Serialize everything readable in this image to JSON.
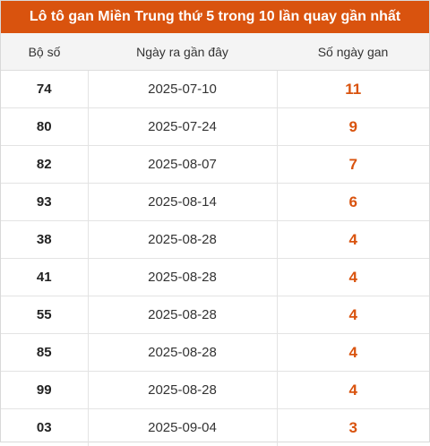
{
  "title": "Lô tô gan Miền Trung thứ 5 trong 10 lần quay gần nhất",
  "colors": {
    "accent": "#d9530e",
    "header_bg": "#f4f4f4"
  },
  "table": {
    "headers": {
      "number": "Bộ số",
      "last_date": "Ngày ra gần đây",
      "days": "Số ngày gan"
    },
    "rows": [
      {
        "number": "74",
        "last_date": "2025-07-10",
        "days": "11"
      },
      {
        "number": "80",
        "last_date": "2025-07-24",
        "days": "9"
      },
      {
        "number": "82",
        "last_date": "2025-08-07",
        "days": "7"
      },
      {
        "number": "93",
        "last_date": "2025-08-14",
        "days": "6"
      },
      {
        "number": "38",
        "last_date": "2025-08-28",
        "days": "4"
      },
      {
        "number": "41",
        "last_date": "2025-08-28",
        "days": "4"
      },
      {
        "number": "55",
        "last_date": "2025-08-28",
        "days": "4"
      },
      {
        "number": "85",
        "last_date": "2025-08-28",
        "days": "4"
      },
      {
        "number": "99",
        "last_date": "2025-08-28",
        "days": "4"
      },
      {
        "number": "03",
        "last_date": "2025-09-04",
        "days": "3"
      }
    ]
  }
}
